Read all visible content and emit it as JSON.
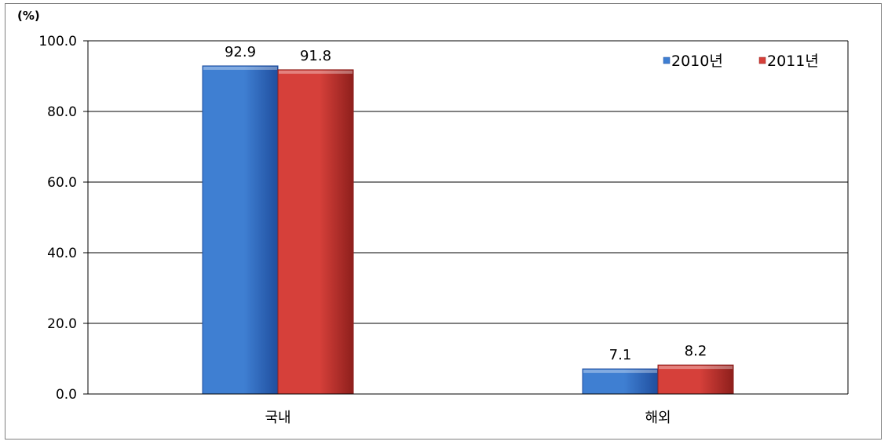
{
  "chart_data": {
    "type": "bar",
    "unit_label": "(%)",
    "categories": [
      "국내",
      "해외"
    ],
    "series": [
      {
        "name": "2010년",
        "values": [
          92.9,
          7.1
        ],
        "labels": [
          "92.9",
          "7.1"
        ],
        "color": "#3f7fd2",
        "dark": "#1f4e9e"
      },
      {
        "name": "2011년",
        "values": [
          91.8,
          8.2
        ],
        "labels": [
          "91.8",
          "8.2"
        ],
        "color": "#d6403a",
        "dark": "#8e1f1c"
      }
    ],
    "ylim": [
      0,
      100
    ],
    "yticks": [
      "0.0",
      "20.0",
      "40.0",
      "60.0",
      "80.0",
      "100.0"
    ],
    "grid": true,
    "legend_position": "top-right",
    "grid_color": "#000000",
    "background": "#ffffff"
  }
}
